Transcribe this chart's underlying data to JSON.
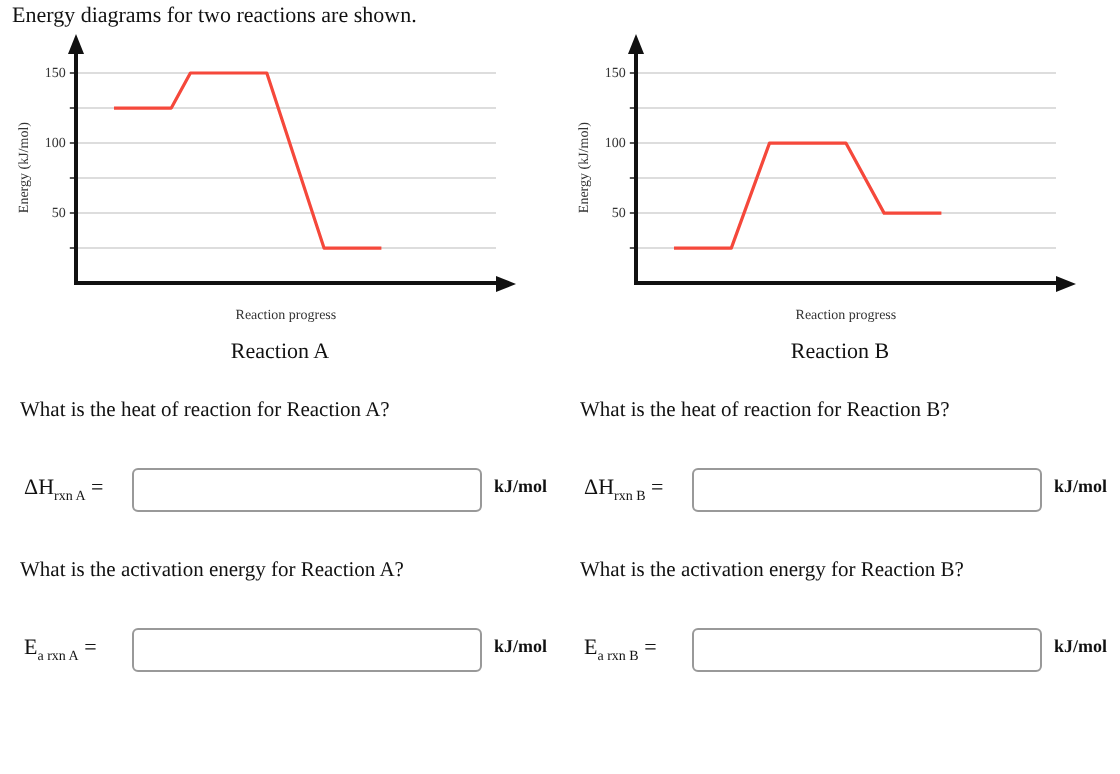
{
  "chart_data": [
    {
      "type": "line",
      "title": "Energy diagrams for two reactions are shown.",
      "subtitle": "Reaction A",
      "xlabel": "Reaction progress",
      "ylabel": "Energy (kJ/mol)",
      "categories": [
        null,
        null,
        null,
        null,
        null,
        null,
        null,
        null,
        null,
        null,
        null,
        null,
        null,
        null,
        null,
        null,
        null,
        null,
        null,
        null,
        null,
        null,
        null
      ],
      "series": [
        {
          "color": "#f5483b",
          "values": [
            null,
            null,
            125,
            125,
            125,
            125,
            150,
            150,
            150,
            150,
            150,
            null,
            null,
            25,
            25,
            25,
            25,
            null,
            null,
            null,
            null,
            null,
            null
          ]
        }
      ],
      "ylim": [
        0,
        165
      ],
      "yticks": [
        {
          "value": 25,
          "label": null
        },
        50,
        {
          "value": 75,
          "label": null
        },
        100,
        {
          "value": 125,
          "label": null
        },
        150
      ],
      "grid": "y",
      "legend": false,
      "marker": "none",
      "tick_labels": "y",
      "annotations": [
        "What is the heat of reaction for Reaction A?",
        "ΔH$_{rxn A}$ =",
        "kJ/mol",
        "What is the activation energy for Reaction A?",
        "E$_{a rxn A}$ =",
        "kJ/mol"
      ]
    },
    {
      "type": "line",
      "subtitle": "Reaction B",
      "xlabel": "Reaction progress",
      "ylabel": "Energy (kJ/mol)",
      "categories": [
        null,
        null,
        null,
        null,
        null,
        null,
        null,
        null,
        null,
        null,
        null,
        null,
        null,
        null,
        null,
        null,
        null,
        null,
        null,
        null,
        null,
        null,
        null
      ],
      "series": [
        {
          "color": "#f5483b",
          "values": [
            null,
            null,
            25,
            25,
            25,
            25,
            null,
            100,
            100,
            100,
            100,
            100,
            null,
            50,
            50,
            50,
            50,
            null,
            null,
            null,
            null,
            null,
            null
          ]
        }
      ],
      "ylim": [
        0,
        165
      ],
      "yticks": [
        {
          "value": 25,
          "label": null
        },
        50,
        {
          "value": 75,
          "label": null
        },
        100,
        {
          "value": 125,
          "label": null
        },
        150
      ],
      "grid": "y",
      "legend": false,
      "marker": "none",
      "tick_labels": "y",
      "annotations": [
        "What is the heat of reaction for Reaction B?",
        "ΔH$_{rxn B}$ =",
        "kJ/mol",
        "What is the activation energy for Reaction B?",
        "E$_{a rxn B}$ =",
        "kJ/mol"
      ]
    }
  ]
}
